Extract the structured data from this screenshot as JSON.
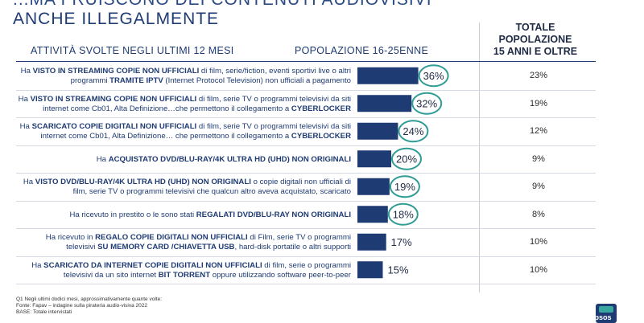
{
  "header": {
    "title_line1": "...MA FRUISCONO DEI CONTENUTI AUDIOVISIVI",
    "title_line2": "ANCHE ILLEGALMENTE",
    "col_activities": "ATTIVITÀ SVOLTE NEGLI ULTIMI 12 MESI",
    "col_population": "POPOLAZIONE 16-25ENNE",
    "col_total": [
      "TOTALE",
      "POPOLAZIONE",
      "15 ANNI E OLTRE"
    ]
  },
  "rows": [
    {
      "html": "Ha <b>VISTO IN STREAMING COPIE NON UFFICIALI</b> di film, serie/fiction, eventi sportivi live o altri programmi <b>TRAMITE IPTV</b> (Internet Protocol Television) non ufficiali a pagamento",
      "total": "23%"
    },
    {
      "html": "Ha <b>VISTO IN STREAMING COPIE NON UFFICIALI</b> di film, serie TV o programmi televisivi da siti internet come Cb01, Alta Definizione…che permettono il collegamento a <b>CYBERLOCKER</b>",
      "total": "19%"
    },
    {
      "html": "Ha <b>SCARICATO COPIE DIGITALI NON UFFICIALI</b> di film, serie TV o programmi televisivi da siti internet come Cb01, Alta Definizione… che permettono il collegamento a <b>CYBERLOCKER</b>",
      "total": "12%"
    },
    {
      "html": "Ha <b>ACQUISTATO DVD/BLU-RAY/4K ULTRA HD (UHD) NON ORIGINALI</b>",
      "total": "9%"
    },
    {
      "html": "Ha <b>VISTO DVD/BLU-RAY/4K ULTRA HD (UHD) NON ORIGINALI</b> o copie digitali non ufficiali di film, serie TV o programmi televisivi che qualcun altro aveva acquistato, scaricato",
      "total": "9%"
    },
    {
      "html": "Ha ricevuto in prestito o le sono stati <b>REGALATI DVD/BLU-RAY NON ORIGINALI</b>",
      "total": "8%"
    },
    {
      "html": "Ha ricevuto in <b>REGALO COPIE DIGITALI NON UFFICIALI</b> di Film, serie TV o programmi televisivi <b>SU MEMORY CARD /CHIAVETTA USB</b>, hard-disk portatile o altri supporti",
      "total": "10%"
    },
    {
      "html": "Ha <b>SCARICATO DA INTERNET COPIE DIGITALI NON UFFICIALI</b> di film, serie o programmi televisivi da un sito internet <b>BIT TORRENT</b> oppure utilizzando software peer-to-peer",
      "total": "10%"
    }
  ],
  "chart_data": {
    "type": "bar",
    "orientation": "horizontal",
    "categories": [
      "TRAMITE IPTV",
      "STREAMING CYBERLOCKER",
      "SCARICATO CYBERLOCKER",
      "ACQUISTATO DVD NON ORIGINALI",
      "VISTO DVD NON ORIGINALI",
      "REGALATI DVD/BLU-RAY",
      "MEMORY CARD / USB",
      "BIT TORRENT"
    ],
    "values": [
      36,
      32,
      24,
      20,
      19,
      18,
      17,
      15
    ],
    "value_labels": [
      "36%",
      "32%",
      "24%",
      "20%",
      "19%",
      "18%",
      "17%",
      "15%"
    ],
    "highlighted": [
      true,
      true,
      true,
      true,
      true,
      true,
      false,
      false
    ],
    "total_population": [
      23,
      19,
      12,
      9,
      9,
      8,
      10,
      10
    ],
    "xlim": [
      0,
      100
    ],
    "bar_color": "#1f3b73",
    "circle_color": "#2f9c95"
  },
  "footer": {
    "line1": "Q1 Negli ultimi dodici mesi, approssimativamente quante volte:",
    "line2": "Fonte: Fapav – indagine sulla pirateria audio-visiva 2022",
    "line3": "BASE: Totale intervistati"
  },
  "logo": {
    "text": "Ipsos"
  }
}
